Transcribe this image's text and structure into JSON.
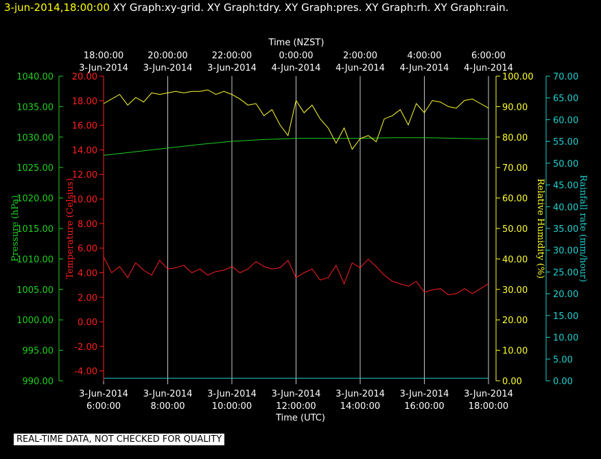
{
  "header": {
    "timestamp": "3-jun-2014,18:00:00",
    "graph_labels": [
      "XY Graph:xy-grid.",
      "XY Graph:tdry.",
      "XY Graph:pres.",
      "XY Graph:rh.",
      "XY Graph:rain."
    ]
  },
  "footer": {
    "notice": "REAL-TIME DATA, NOT CHECKED FOR QUALITY"
  },
  "colors": {
    "background": "#000000",
    "grid": "#c8c8c8",
    "temperature": "#ff2020",
    "pressure": "#20d020",
    "humidity": "#ffff30",
    "rainfall": "#20d0d0"
  },
  "chart_data": {
    "type": "line",
    "grid": true,
    "top_axis": {
      "title": "Time (NZST)",
      "ticks": [
        [
          "18:00:00",
          "3-Jun-2014"
        ],
        [
          "20:00:00",
          "3-Jun-2014"
        ],
        [
          "22:00:00",
          "3-Jun-2014"
        ],
        [
          "0:00:00",
          "4-Jun-2014"
        ],
        [
          "2:00:00",
          "4-Jun-2014"
        ],
        [
          "4:00:00",
          "4-Jun-2014"
        ],
        [
          "6:00:00",
          "4-Jun-2014"
        ]
      ]
    },
    "bottom_axis": {
      "title": "Time (UTC)",
      "ticks": [
        [
          "3-Jun-2014",
          "6:00:00"
        ],
        [
          "3-Jun-2014",
          "8:00:00"
        ],
        [
          "3-Jun-2014",
          "10:00:00"
        ],
        [
          "3-Jun-2014",
          "12:00:00"
        ],
        [
          "3-Jun-2014",
          "14:00:00"
        ],
        [
          "3-Jun-2014",
          "16:00:00"
        ],
        [
          "3-Jun-2014",
          "18:00:00"
        ]
      ]
    },
    "x_hours_utc": [
      6,
      8,
      10,
      12,
      14,
      16,
      18
    ],
    "xlim_hours_utc": [
      6,
      18
    ],
    "axes": {
      "pressure": {
        "label": "Pressure (hPa)",
        "ylim": [
          990,
          1040
        ],
        "ticks": [
          "990.00",
          "995.00",
          "1000.00",
          "1005.00",
          "1010.00",
          "1015.00",
          "1020.00",
          "1025.00",
          "1030.00",
          "1035.00",
          "1040.00"
        ]
      },
      "temperature": {
        "label": "Temperature (Celsius)",
        "ylim": [
          -4.8,
          20
        ],
        "ticks": [
          "-4.00",
          "-2.00",
          "0.00",
          "2.00",
          "4.00",
          "6.00",
          "8.00",
          "10.00",
          "12.00",
          "14.00",
          "16.00",
          "18.00",
          "20.00"
        ]
      },
      "humidity": {
        "label": "Relative Humidity (%)",
        "ylim": [
          0,
          100
        ],
        "ticks": [
          "0.00",
          "10.00",
          "20.00",
          "30.00",
          "40.00",
          "50.00",
          "60.00",
          "70.00",
          "80.00",
          "90.00",
          "100.00"
        ]
      },
      "rainfall": {
        "label": "Rainfall rate (mm/hour)",
        "ylim": [
          0,
          70
        ],
        "ticks": [
          "0.00",
          "5.00",
          "10.00",
          "15.00",
          "20.00",
          "25.00",
          "30.00",
          "35.00",
          "40.00",
          "45.00",
          "50.00",
          "55.00",
          "60.00",
          "65.00",
          "70.00"
        ]
      }
    },
    "series": [
      {
        "key": "temperature",
        "x": [
          6.0,
          6.25,
          6.5,
          6.75,
          7.0,
          7.25,
          7.5,
          7.75,
          8.0,
          8.25,
          8.5,
          8.75,
          9.0,
          9.25,
          9.5,
          9.75,
          10.0,
          10.25,
          10.5,
          10.75,
          11.0,
          11.25,
          11.5,
          11.75,
          12.0,
          12.25,
          12.5,
          12.75,
          13.0,
          13.25,
          13.5,
          13.75,
          14.0,
          14.25,
          14.5,
          14.75,
          15.0,
          15.25,
          15.5,
          15.75,
          16.0,
          16.25,
          16.5,
          16.75,
          17.0,
          17.25,
          17.5,
          17.75,
          18.0
        ],
        "values": [
          5.3,
          4.0,
          4.5,
          3.6,
          4.8,
          4.2,
          3.8,
          5.0,
          4.3,
          4.4,
          4.6,
          4.0,
          4.3,
          3.8,
          4.1,
          4.2,
          4.5,
          4.0,
          4.3,
          4.9,
          4.5,
          4.3,
          4.4,
          5.0,
          3.6,
          4.0,
          4.3,
          3.4,
          3.6,
          4.6,
          3.1,
          4.8,
          4.4,
          5.1,
          4.5,
          3.8,
          3.3,
          3.1,
          2.9,
          3.3,
          2.4,
          2.6,
          2.7,
          2.2,
          2.3,
          2.7,
          2.3,
          2.7,
          3.1
        ]
      },
      {
        "key": "pressure",
        "x": [
          6.0,
          7.0,
          8.0,
          9.0,
          10.0,
          11.0,
          12.0,
          13.0,
          14.0,
          15.0,
          16.0,
          17.0,
          18.0
        ],
        "values": [
          1027.0,
          1027.6,
          1028.2,
          1028.8,
          1029.3,
          1029.6,
          1029.8,
          1029.8,
          1029.8,
          1029.9,
          1029.9,
          1029.8,
          1029.7
        ]
      },
      {
        "key": "humidity",
        "x": [
          6.0,
          6.25,
          6.5,
          6.75,
          7.0,
          7.25,
          7.5,
          7.75,
          8.0,
          8.25,
          8.5,
          8.75,
          9.0,
          9.25,
          9.5,
          9.75,
          10.0,
          10.25,
          10.5,
          10.75,
          11.0,
          11.25,
          11.5,
          11.75,
          12.0,
          12.25,
          12.5,
          12.75,
          13.0,
          13.25,
          13.5,
          13.75,
          14.0,
          14.25,
          14.5,
          14.75,
          15.0,
          15.25,
          15.5,
          15.75,
          16.0,
          16.25,
          16.5,
          16.75,
          17.0,
          17.25,
          17.5,
          17.75,
          18.0
        ],
        "values": [
          91.0,
          92.5,
          94.0,
          90.5,
          93.0,
          91.5,
          94.5,
          94.0,
          94.5,
          95.0,
          94.5,
          95.0,
          95.0,
          95.5,
          94.0,
          95.0,
          94.0,
          92.5,
          90.5,
          91.0,
          87.0,
          89.0,
          84.0,
          80.5,
          92.0,
          88.0,
          90.5,
          86.0,
          83.0,
          78.0,
          83.0,
          76.0,
          79.5,
          80.5,
          78.5,
          86.0,
          87.0,
          89.0,
          84.0,
          91.0,
          88.0,
          92.0,
          91.5,
          90.0,
          89.5,
          92.0,
          92.5,
          91.0,
          89.5
        ]
      },
      {
        "key": "rainfall",
        "x": [
          6.0,
          18.0
        ],
        "values": [
          0.6,
          0.6
        ]
      }
    ]
  }
}
